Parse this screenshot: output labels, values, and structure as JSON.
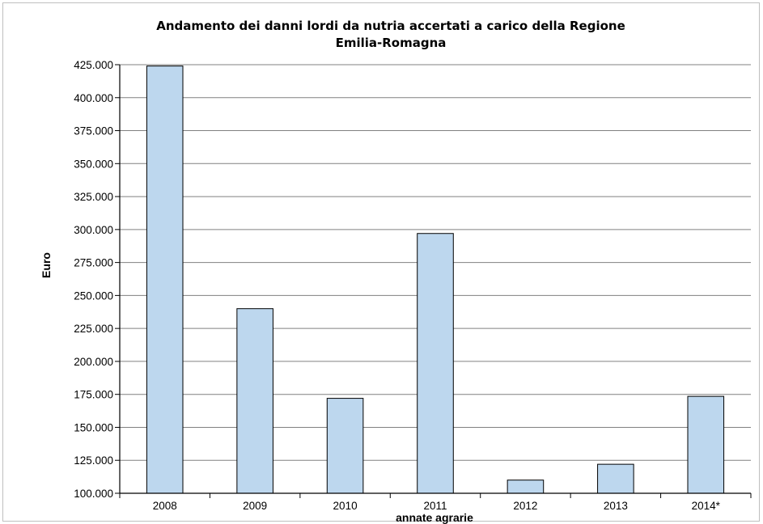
{
  "chart_data": {
    "type": "bar",
    "title": [
      "Andamento dei danni lordi da nutria accertati a carico della Regione",
      "Emilia-Romagna"
    ],
    "xlabel": "annate agrarie",
    "ylabel": "Euro",
    "categories": [
      "2008",
      "2009",
      "2010",
      "2011",
      "2012",
      "2013",
      "2014*"
    ],
    "values": [
      424000,
      240000,
      172000,
      297000,
      110000,
      122000,
      173500
    ],
    "ylim": [
      100000,
      425000
    ],
    "yticks": [
      100000,
      125000,
      150000,
      175000,
      200000,
      225000,
      250000,
      275000,
      300000,
      325000,
      350000,
      375000,
      400000,
      425000
    ],
    "ytick_labels": [
      "100.000",
      "125.000",
      "150.000",
      "175.000",
      "200.000",
      "225.000",
      "250.000",
      "275.000",
      "300.000",
      "325.000",
      "350.000",
      "375.000",
      "400.000",
      "425.000"
    ],
    "grid": true,
    "legend": "none",
    "bar_color": "#bdd7ee",
    "bar_edge_color": "#000000",
    "grid_color": "#808080"
  }
}
